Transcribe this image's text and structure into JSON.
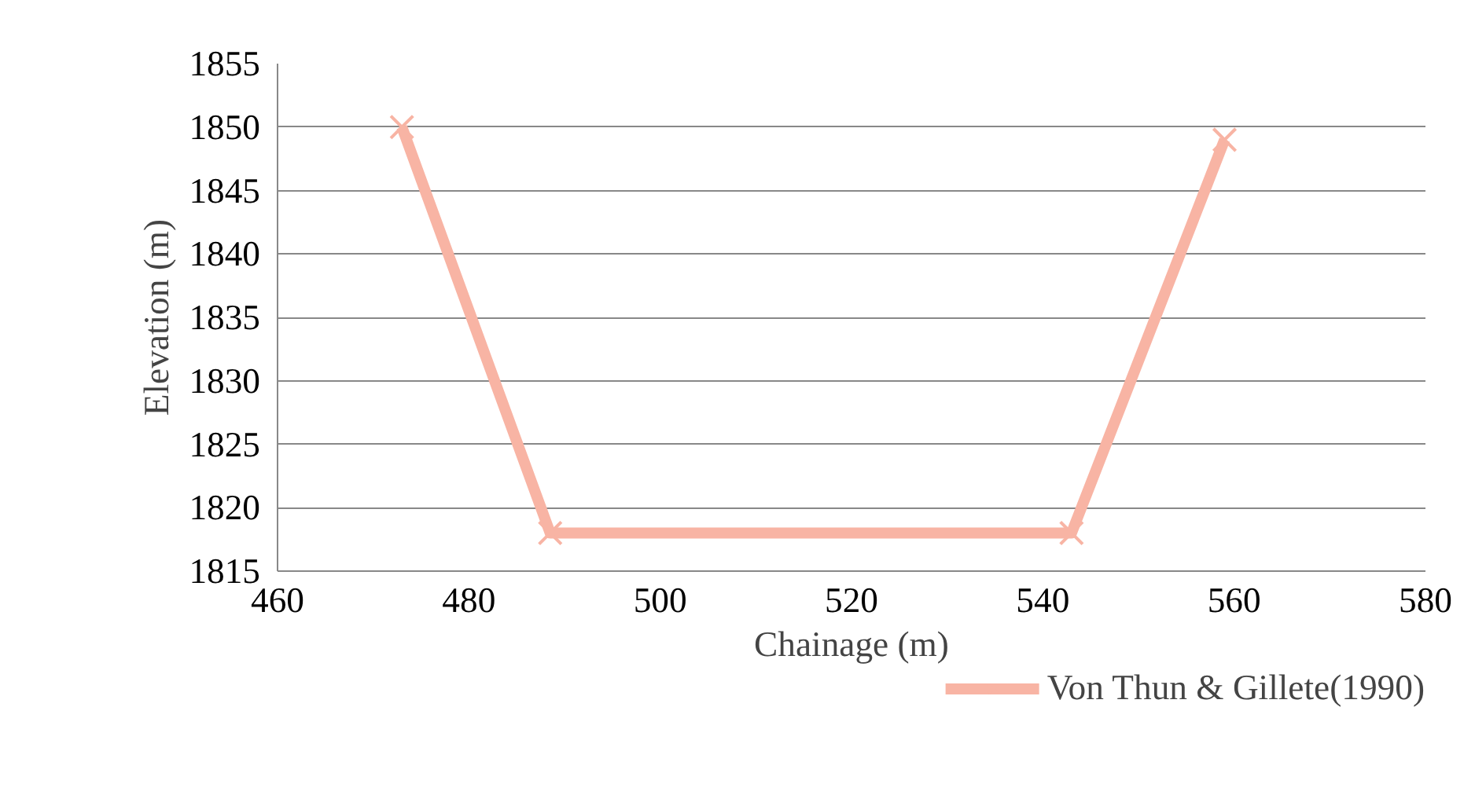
{
  "chart_data": {
    "type": "line",
    "xlabel": "Chainage (m)",
    "ylabel": "Elevation (m)",
    "xlim": [
      460,
      580
    ],
    "xticks": [
      460,
      480,
      500,
      520,
      540,
      560,
      580
    ],
    "ylim": [
      1815,
      1855
    ],
    "yticks": [
      1815,
      1820,
      1825,
      1830,
      1835,
      1840,
      1845,
      1850,
      1855
    ],
    "grid": "y",
    "legend": "bottom right",
    "marker": "cross",
    "line_style": "solid",
    "series": [
      {
        "name": "Von Thun & Gillete(1990)",
        "color": "#f8b4a4",
        "x": [
          473,
          488.5,
          543,
          559
        ],
        "values": [
          1850,
          1818,
          1818,
          1849
        ]
      }
    ]
  }
}
